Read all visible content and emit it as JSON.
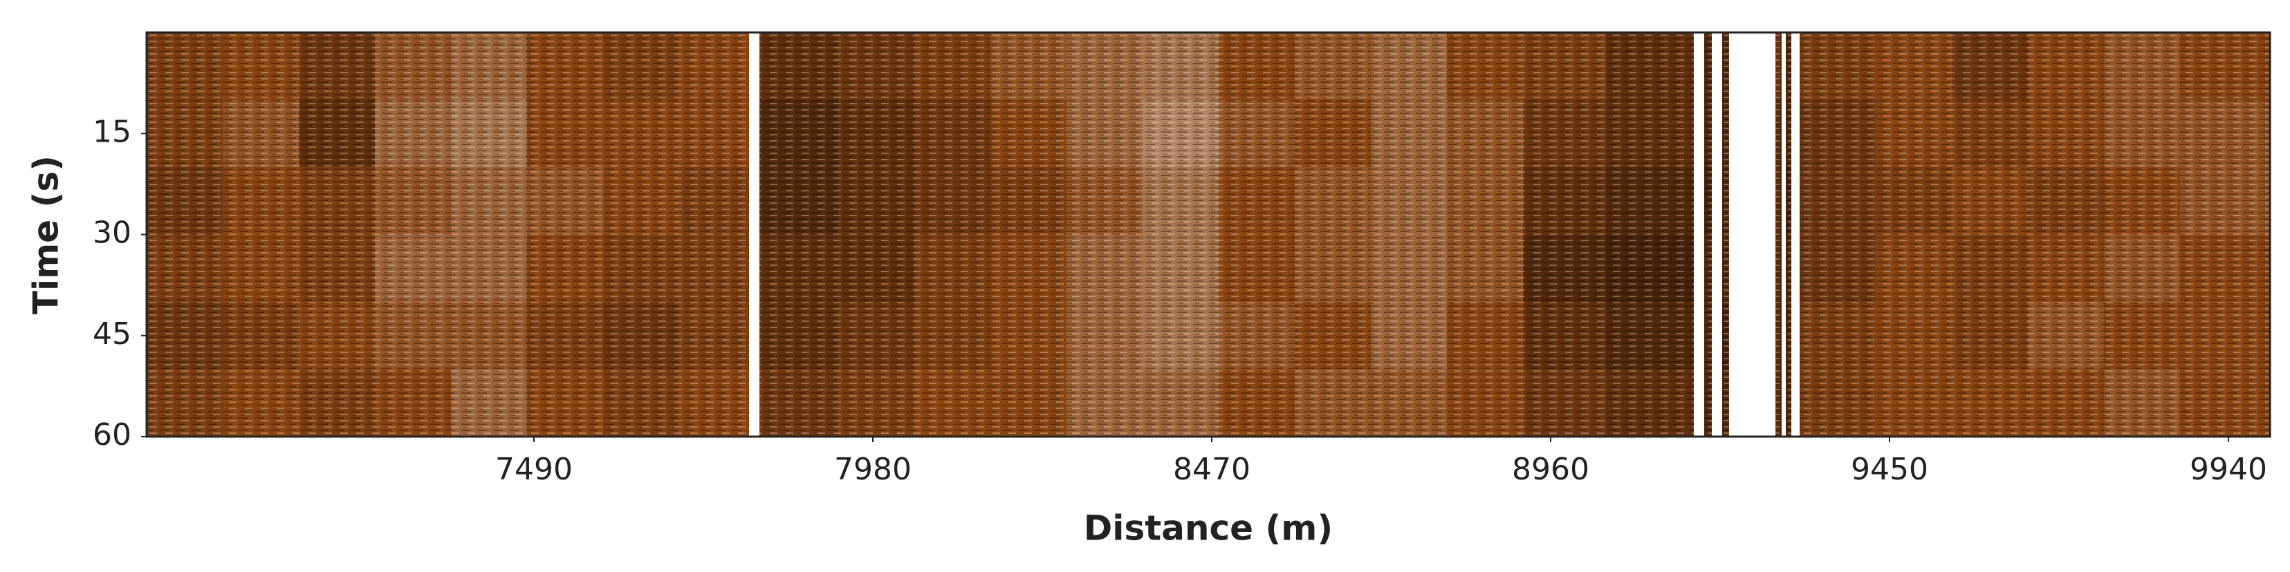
{
  "chart_data": {
    "type": "heatmap",
    "xlabel": "Distance (m)",
    "ylabel": "Time (s)",
    "xlim": [
      6930,
      10000
    ],
    "ylim": [
      60,
      0
    ],
    "xticks": [
      7490,
      7980,
      8470,
      8960,
      9450,
      9940
    ],
    "yticks": [
      15,
      30,
      45,
      60
    ],
    "x_edges": [
      6930,
      7040,
      7150,
      7260,
      7370,
      7480,
      7590,
      7700,
      7801,
      7816,
      7930,
      8040,
      8150,
      8260,
      8370,
      8480,
      8590,
      8700,
      8810,
      8920,
      9040,
      9167,
      9182,
      9193,
      9208,
      9218,
      9285,
      9294,
      9300,
      9308,
      9320,
      9430,
      9540,
      9650,
      9760,
      9870,
      10000
    ],
    "y_edges": [
      0,
      10,
      20,
      30,
      40,
      50,
      60
    ],
    "colors": [
      "#000000",
      "#8b4513",
      "#ece4dc"
    ],
    "z": [
      [
        0.45,
        0.5,
        0.4,
        0.55,
        0.6,
        0.5,
        0.45,
        0.5,
        null,
        0.35,
        0.4,
        0.45,
        0.55,
        0.6,
        0.65,
        0.5,
        0.55,
        0.6,
        0.5,
        0.45,
        0.35,
        null,
        0.3,
        null,
        0.3,
        null,
        0.35,
        null,
        0.3,
        null,
        0.45,
        0.5,
        0.4,
        0.5,
        0.55,
        0.5
      ],
      [
        0.45,
        0.55,
        0.35,
        0.6,
        0.65,
        0.5,
        0.5,
        0.5,
        null,
        0.3,
        0.35,
        0.4,
        0.5,
        0.6,
        0.7,
        0.55,
        0.5,
        0.6,
        0.55,
        0.4,
        0.35,
        null,
        0.3,
        null,
        0.3,
        null,
        0.3,
        null,
        0.3,
        null,
        0.4,
        0.5,
        0.45,
        0.5,
        0.55,
        0.55
      ],
      [
        0.4,
        0.5,
        0.45,
        0.55,
        0.6,
        0.55,
        0.5,
        0.45,
        null,
        0.3,
        0.35,
        0.4,
        0.45,
        0.55,
        0.65,
        0.5,
        0.55,
        0.6,
        0.55,
        0.35,
        0.3,
        null,
        0.25,
        null,
        0.3,
        null,
        0.3,
        null,
        0.25,
        null,
        0.4,
        0.45,
        0.5,
        0.45,
        0.5,
        0.55
      ],
      [
        0.45,
        0.5,
        0.45,
        0.6,
        0.6,
        0.5,
        0.45,
        0.45,
        null,
        0.35,
        0.35,
        0.45,
        0.5,
        0.6,
        0.65,
        0.5,
        0.55,
        0.6,
        0.55,
        0.3,
        0.25,
        null,
        0.3,
        null,
        0.3,
        null,
        0.3,
        null,
        0.3,
        null,
        0.4,
        0.5,
        0.45,
        0.5,
        0.55,
        0.5
      ],
      [
        0.4,
        0.45,
        0.5,
        0.55,
        0.55,
        0.45,
        0.4,
        0.45,
        null,
        0.35,
        0.4,
        0.45,
        0.5,
        0.6,
        0.65,
        0.55,
        0.5,
        0.6,
        0.5,
        0.35,
        0.3,
        null,
        0.3,
        null,
        0.25,
        null,
        0.3,
        null,
        0.3,
        null,
        0.45,
        0.5,
        0.45,
        0.55,
        0.5,
        0.5
      ],
      [
        0.45,
        0.5,
        0.45,
        0.5,
        0.6,
        0.5,
        0.45,
        0.5,
        null,
        0.4,
        0.45,
        0.5,
        0.5,
        0.6,
        0.6,
        0.5,
        0.55,
        0.55,
        0.5,
        0.4,
        0.35,
        null,
        0.3,
        null,
        0.3,
        null,
        0.3,
        null,
        0.3,
        null,
        0.45,
        0.5,
        0.5,
        0.5,
        0.55,
        0.5
      ]
    ]
  }
}
